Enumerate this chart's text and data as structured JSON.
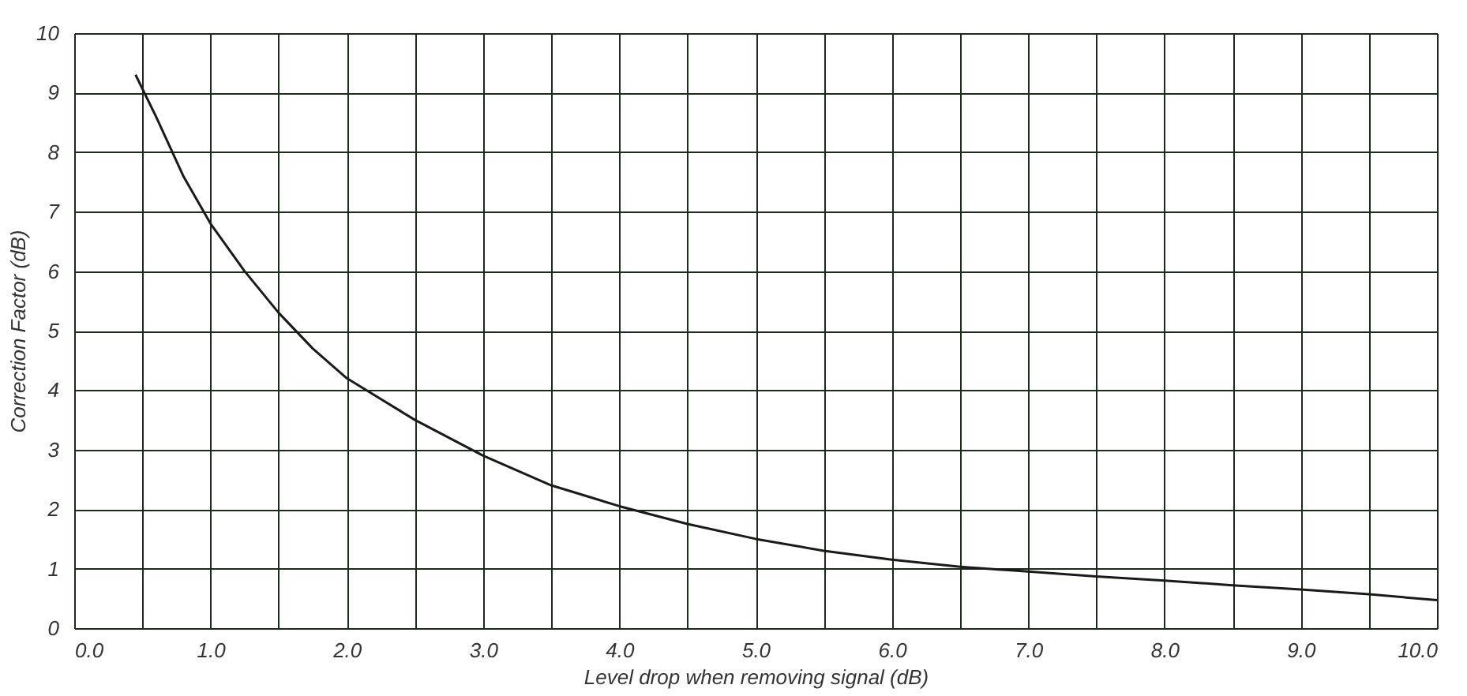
{
  "chart_data": {
    "type": "line",
    "xlabel": "Level drop when removing signal (dB)",
    "ylabel": "Correction Factor (dB)",
    "x": [
      0.45,
      0.6,
      0.8,
      1.0,
      1.25,
      1.5,
      1.75,
      2.0,
      2.5,
      3.0,
      3.5,
      4.0,
      4.5,
      5.0,
      5.5,
      6.0,
      6.5,
      7.0,
      7.5,
      8.0,
      8.5,
      9.0,
      9.5,
      10.0
    ],
    "series": [
      {
        "color": "#1a1a1a",
        "values": [
          9.3,
          8.6,
          7.6,
          6.8,
          6.0,
          5.3,
          4.7,
          4.2,
          3.5,
          2.9,
          2.4,
          2.05,
          1.75,
          1.5,
          1.3,
          1.15,
          1.03,
          0.95,
          0.87,
          0.8,
          0.72,
          0.65,
          0.57,
          0.47
        ]
      }
    ],
    "xlim": [
      0,
      10
    ],
    "ylim": [
      0,
      10
    ],
    "xticks": [
      {
        "value": 0,
        "label": "0.0"
      },
      {
        "value": 0.5,
        "label": null
      },
      {
        "value": 1,
        "label": "1.0"
      },
      {
        "value": 1.5,
        "label": null
      },
      {
        "value": 2,
        "label": "2.0"
      },
      {
        "value": 2.5,
        "label": null
      },
      {
        "value": 3,
        "label": "3.0"
      },
      {
        "value": 3.5,
        "label": null
      },
      {
        "value": 4,
        "label": "4.0"
      },
      {
        "value": 4.5,
        "label": null
      },
      {
        "value": 5,
        "label": "5.0"
      },
      {
        "value": 5.5,
        "label": null
      },
      {
        "value": 6,
        "label": "6.0"
      },
      {
        "value": 6.5,
        "label": null
      },
      {
        "value": 7,
        "label": "7.0"
      },
      {
        "value": 7.5,
        "label": null
      },
      {
        "value": 8,
        "label": "8.0"
      },
      {
        "value": 8.5,
        "label": null
      },
      {
        "value": 9,
        "label": "9.0"
      },
      {
        "value": 9.5,
        "label": null
      },
      {
        "value": 10,
        "label": "10.0"
      }
    ],
    "yticks": [
      0,
      1,
      2,
      3,
      4,
      5,
      6,
      7,
      8,
      9,
      10
    ],
    "grid": true,
    "line_style": "solid",
    "marker": "none"
  }
}
